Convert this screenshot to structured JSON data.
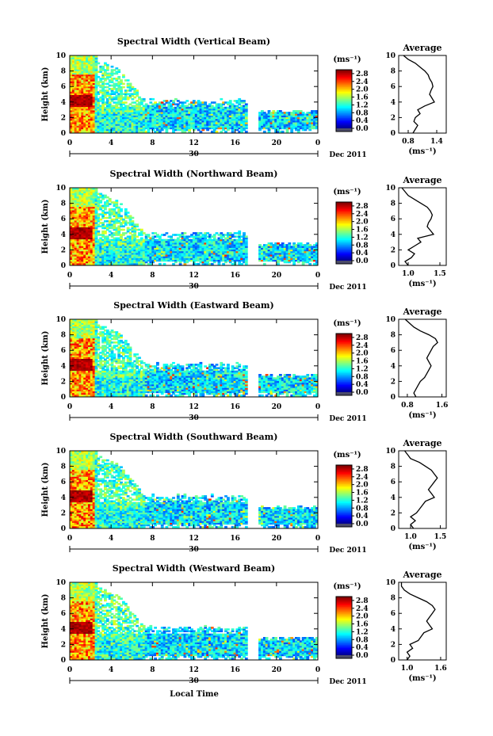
{
  "figure": {
    "xlabel": "Local Time",
    "date_label": "Dec 2011",
    "day_label": "30",
    "colorbar_unit": "(ms⁻¹)",
    "avg_title": "Average",
    "avg_xunit": "(ms⁻¹)"
  },
  "chart_data": [
    {
      "type": "heatmap",
      "title": "Spectral Width (Vertical Beam)",
      "ylabel": "Height (km)",
      "x_ticks": [
        "0",
        "4",
        "8",
        "12",
        "16",
        "20",
        "0"
      ],
      "y_ticks": [
        "0",
        "2",
        "4",
        "6",
        "8",
        "10"
      ],
      "xlim": [
        0,
        24
      ],
      "ylim": [
        0,
        10
      ],
      "colorbar_ticks": [
        "0.0",
        "0.4",
        "0.8",
        "1.2",
        "1.6",
        "2.0",
        "2.4",
        "2.8"
      ],
      "colorbar_range": [
        0,
        3.0
      ],
      "profile": {
        "title": "Average",
        "x_ticks": [
          "0.8",
          "1.4"
        ],
        "xlim": [
          0.6,
          1.6
        ],
        "heights": [
          0.0,
          0.5,
          1.0,
          1.5,
          2.0,
          2.5,
          3.0,
          3.5,
          4.0,
          4.5,
          5.0,
          5.5,
          6.0,
          6.5,
          7.0,
          7.5,
          8.0,
          8.5,
          9.0,
          9.5,
          10.0
        ],
        "values": [
          0.9,
          0.95,
          1.0,
          0.92,
          0.95,
          1.05,
          1.0,
          1.15,
          1.35,
          1.3,
          1.25,
          1.28,
          1.32,
          1.3,
          1.25,
          1.22,
          1.15,
          1.05,
          0.95,
          0.8,
          0.7
        ]
      }
    },
    {
      "type": "heatmap",
      "title": "Spectral Width (Northward Beam)",
      "ylabel": "Height (km)",
      "x_ticks": [
        "0",
        "4",
        "8",
        "12",
        "16",
        "20",
        "0"
      ],
      "y_ticks": [
        "0",
        "2",
        "4",
        "6",
        "8",
        "10"
      ],
      "xlim": [
        0,
        24
      ],
      "ylim": [
        0,
        10
      ],
      "colorbar_ticks": [
        "0.0",
        "0.4",
        "0.8",
        "1.2",
        "1.6",
        "2.0",
        "2.4",
        "2.8"
      ],
      "colorbar_range": [
        0,
        3.0
      ],
      "profile": {
        "title": "Average",
        "x_ticks": [
          "1.0",
          "1.5"
        ],
        "xlim": [
          0.85,
          1.6
        ],
        "heights": [
          0.0,
          0.5,
          1.0,
          1.5,
          2.0,
          2.5,
          3.0,
          3.5,
          4.0,
          4.5,
          5.0,
          5.5,
          6.0,
          6.5,
          7.0,
          7.5,
          8.0,
          8.5,
          9.0,
          9.5,
          10.0
        ],
        "values": [
          1.0,
          0.95,
          1.05,
          1.1,
          1.0,
          1.1,
          1.2,
          1.15,
          1.4,
          1.35,
          1.3,
          1.32,
          1.36,
          1.38,
          1.35,
          1.3,
          1.2,
          1.1,
          1.0,
          0.95,
          0.9
        ]
      }
    },
    {
      "type": "heatmap",
      "title": "Spectral Width (Eastward Beam)",
      "ylabel": "Height (km)",
      "x_ticks": [
        "0",
        "4",
        "8",
        "12",
        "16",
        "20",
        "0"
      ],
      "y_ticks": [
        "0",
        "2",
        "4",
        "6",
        "8",
        "10"
      ],
      "xlim": [
        0,
        24
      ],
      "ylim": [
        0,
        10
      ],
      "colorbar_ticks": [
        "0.0",
        "0.4",
        "0.8",
        "1.2",
        "1.6",
        "2.0",
        "2.4",
        "2.8"
      ],
      "colorbar_range": [
        0,
        3.0
      ],
      "profile": {
        "title": "Average",
        "x_ticks": [
          "0.8",
          "1.6"
        ],
        "xlim": [
          0.6,
          1.7
        ],
        "heights": [
          0.0,
          0.5,
          1.0,
          1.5,
          2.0,
          2.5,
          3.0,
          3.5,
          4.0,
          4.5,
          5.0,
          5.5,
          6.0,
          6.5,
          7.0,
          7.5,
          8.0,
          8.5,
          9.0,
          9.5,
          10.0
        ],
        "values": [
          1.0,
          0.95,
          1.0,
          1.05,
          1.1,
          1.2,
          1.25,
          1.3,
          1.35,
          1.3,
          1.25,
          1.3,
          1.35,
          1.4,
          1.5,
          1.45,
          1.3,
          1.1,
          0.95,
          0.85,
          0.75
        ]
      }
    },
    {
      "type": "heatmap",
      "title": "Spectral Width (Southward Beam)",
      "ylabel": "Height (km)",
      "x_ticks": [
        "0",
        "4",
        "8",
        "12",
        "16",
        "20",
        "0"
      ],
      "y_ticks": [
        "0",
        "2",
        "4",
        "6",
        "8",
        "10"
      ],
      "xlim": [
        0,
        24
      ],
      "ylim": [
        0,
        10
      ],
      "colorbar_ticks": [
        "0.0",
        "0.4",
        "0.8",
        "1.2",
        "1.6",
        "2.0",
        "2.4",
        "2.8"
      ],
      "colorbar_range": [
        0,
        3.0
      ],
      "profile": {
        "title": "Average",
        "x_ticks": [
          "1.0",
          "1.5"
        ],
        "xlim": [
          0.8,
          1.6
        ],
        "heights": [
          0.0,
          0.5,
          1.0,
          1.5,
          2.0,
          2.5,
          3.0,
          3.5,
          4.0,
          4.5,
          5.0,
          5.5,
          6.0,
          6.5,
          7.0,
          7.5,
          8.0,
          8.5,
          9.0,
          9.5,
          10.0
        ],
        "values": [
          1.05,
          1.0,
          1.08,
          1.0,
          1.1,
          1.15,
          1.2,
          1.25,
          1.4,
          1.35,
          1.3,
          1.35,
          1.4,
          1.45,
          1.4,
          1.35,
          1.25,
          1.15,
          1.0,
          0.95,
          0.9
        ]
      }
    },
    {
      "type": "heatmap",
      "title": "Spectral Width (Westward Beam)",
      "ylabel": "Height (km)",
      "x_ticks": [
        "0",
        "4",
        "8",
        "12",
        "16",
        "20",
        "0"
      ],
      "y_ticks": [
        "0",
        "2",
        "4",
        "6",
        "8",
        "10"
      ],
      "xlim": [
        0,
        24
      ],
      "ylim": [
        0,
        10
      ],
      "colorbar_ticks": [
        "0.0",
        "0.4",
        "0.8",
        "1.2",
        "1.6",
        "2.0",
        "2.4",
        "2.8"
      ],
      "colorbar_range": [
        0,
        3.0
      ],
      "profile": {
        "title": "Average",
        "x_ticks": [
          "1.0",
          "1.6"
        ],
        "xlim": [
          0.85,
          1.7
        ],
        "heights": [
          0.0,
          0.5,
          1.0,
          1.5,
          2.0,
          2.5,
          3.0,
          3.5,
          4.0,
          4.5,
          5.0,
          5.5,
          6.0,
          6.5,
          7.0,
          7.5,
          8.0,
          8.5,
          9.0,
          9.5,
          10.0
        ],
        "values": [
          1.0,
          1.05,
          1.0,
          1.1,
          1.05,
          1.2,
          1.25,
          1.3,
          1.45,
          1.4,
          1.35,
          1.4,
          1.45,
          1.5,
          1.45,
          1.35,
          1.2,
          1.05,
          0.95,
          0.9,
          0.9
        ]
      }
    }
  ]
}
